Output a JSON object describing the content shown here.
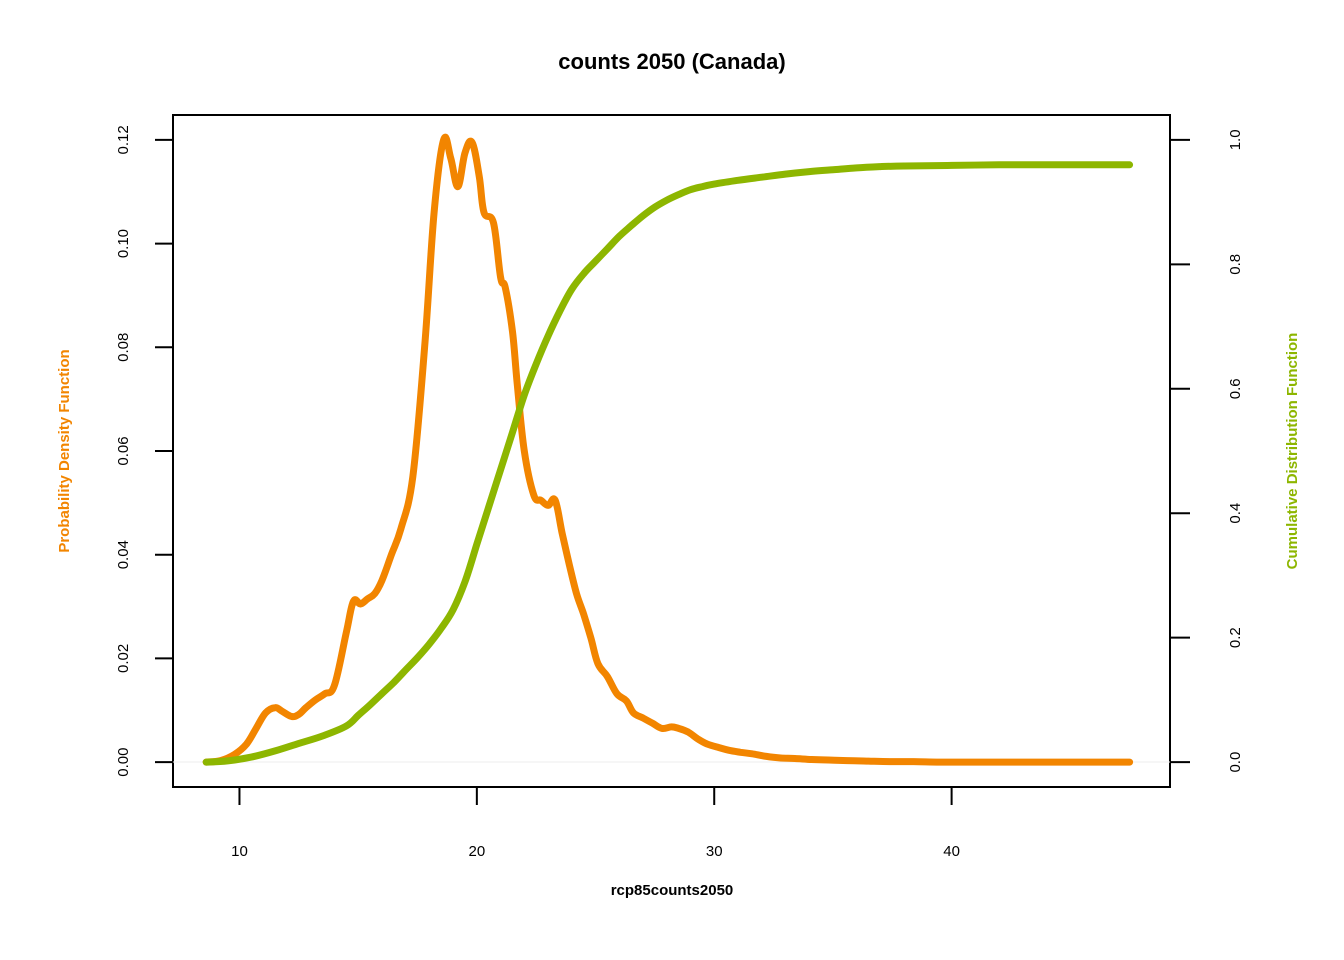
{
  "chart_data": {
    "type": "line",
    "title": "counts 2050 (Canada)",
    "xlabel": "rcp85counts2050",
    "ylabel_left": "Probability Density Function",
    "ylabel_right": "Cumulative Distribution Function",
    "xlim": [
      7.2,
      49.2
    ],
    "ylim_left": [
      -0.0048,
      0.1248
    ],
    "ylim_right": [
      -0.04,
      1.04
    ],
    "x_ticks": [
      "10",
      "20",
      "30",
      "40"
    ],
    "y_left_ticks": [
      "0.00",
      "0.02",
      "0.04",
      "0.06",
      "0.08",
      "0.10",
      "0.12"
    ],
    "y_right_ticks": [
      "0.0",
      "0.2",
      "0.4",
      "0.6",
      "0.8",
      "1.0"
    ],
    "grid": false,
    "colors": {
      "pdf": "#F28500",
      "cdf": "#8DB600",
      "axis": "#000000"
    },
    "series": [
      {
        "name": "Probability Density Function",
        "axis": "left",
        "x": [
          8.6,
          9.2,
          9.8,
          10.3,
          10.7,
          11.1,
          11.5,
          11.8,
          12.2,
          12.5,
          12.8,
          13.2,
          13.6,
          14.0,
          14.5,
          14.8,
          15.1,
          15.4,
          15.7,
          16.0,
          16.4,
          16.8,
          17.3,
          17.8,
          18.2,
          18.6,
          18.9,
          19.2,
          19.5,
          19.8,
          20.1,
          20.3,
          20.7,
          21.0,
          21.2,
          21.5,
          21.7,
          22.0,
          22.4,
          22.7,
          23.0,
          23.3,
          23.6,
          23.9,
          24.2,
          24.5,
          24.8,
          25.1,
          25.5,
          25.9,
          26.3,
          26.6,
          27.0,
          27.4,
          27.8,
          28.2,
          28.5,
          28.9,
          29.3,
          29.7,
          30.2,
          30.6,
          31.1,
          31.6,
          32.2,
          32.8,
          33.4,
          34.1,
          34.8,
          35.6,
          36.5,
          37.4,
          38.4,
          39.5,
          40.8,
          42.2,
          43.8,
          45.5,
          47.5
        ],
        "values": [
          0.0,
          0.0003,
          0.0015,
          0.0035,
          0.0065,
          0.0095,
          0.0105,
          0.0098,
          0.0088,
          0.0092,
          0.0105,
          0.012,
          0.0132,
          0.0148,
          0.025,
          0.031,
          0.0305,
          0.0315,
          0.0325,
          0.035,
          0.04,
          0.045,
          0.055,
          0.08,
          0.106,
          0.12,
          0.1165,
          0.111,
          0.1175,
          0.1195,
          0.113,
          0.106,
          0.104,
          0.0935,
          0.0915,
          0.083,
          0.073,
          0.06,
          0.0515,
          0.0505,
          0.0495,
          0.0505,
          0.044,
          0.038,
          0.0325,
          0.0285,
          0.024,
          0.019,
          0.0165,
          0.0132,
          0.0118,
          0.0095,
          0.0085,
          0.0075,
          0.0065,
          0.0068,
          0.0065,
          0.0058,
          0.0045,
          0.0035,
          0.0028,
          0.0023,
          0.0019,
          0.0016,
          0.0011,
          0.0008,
          0.0007,
          0.0005,
          0.0004,
          0.0003,
          0.0002,
          0.0001,
          0.0001,
          0.0,
          0.0,
          0.0,
          0.0,
          0.0,
          0.0
        ],
        "x_full_note": ""
      },
      {
        "name": "Cumulative Distribution Function",
        "axis": "right",
        "x": [
          8.6,
          9.5,
          10.5,
          11.5,
          12.5,
          13.5,
          14.5,
          15.0,
          15.5,
          16.0,
          16.5,
          17.0,
          17.5,
          18.0,
          18.5,
          19.0,
          19.5,
          20.0,
          20.5,
          21.0,
          21.5,
          22.0,
          22.5,
          23.0,
          23.5,
          24.0,
          24.5,
          25.0,
          25.5,
          26.0,
          26.5,
          27.0,
          27.5,
          28.0,
          28.5,
          29.0,
          29.5,
          30.0,
          31.0,
          32.0,
          33.0,
          34.0,
          35.0,
          36.0,
          37.0,
          38.0,
          40.0,
          42.0,
          44.0,
          47.5
        ],
        "values": [
          0.0,
          0.002,
          0.008,
          0.018,
          0.03,
          0.042,
          0.058,
          0.075,
          0.092,
          0.11,
          0.128,
          0.148,
          0.168,
          0.19,
          0.215,
          0.245,
          0.29,
          0.35,
          0.41,
          0.47,
          0.53,
          0.59,
          0.64,
          0.685,
          0.725,
          0.76,
          0.785,
          0.805,
          0.825,
          0.845,
          0.862,
          0.878,
          0.892,
          0.903,
          0.912,
          0.92,
          0.925,
          0.929,
          0.935,
          0.94,
          0.945,
          0.949,
          0.952,
          0.955,
          0.957,
          0.958,
          0.959,
          0.96,
          0.96,
          0.96
        ]
      }
    ]
  }
}
